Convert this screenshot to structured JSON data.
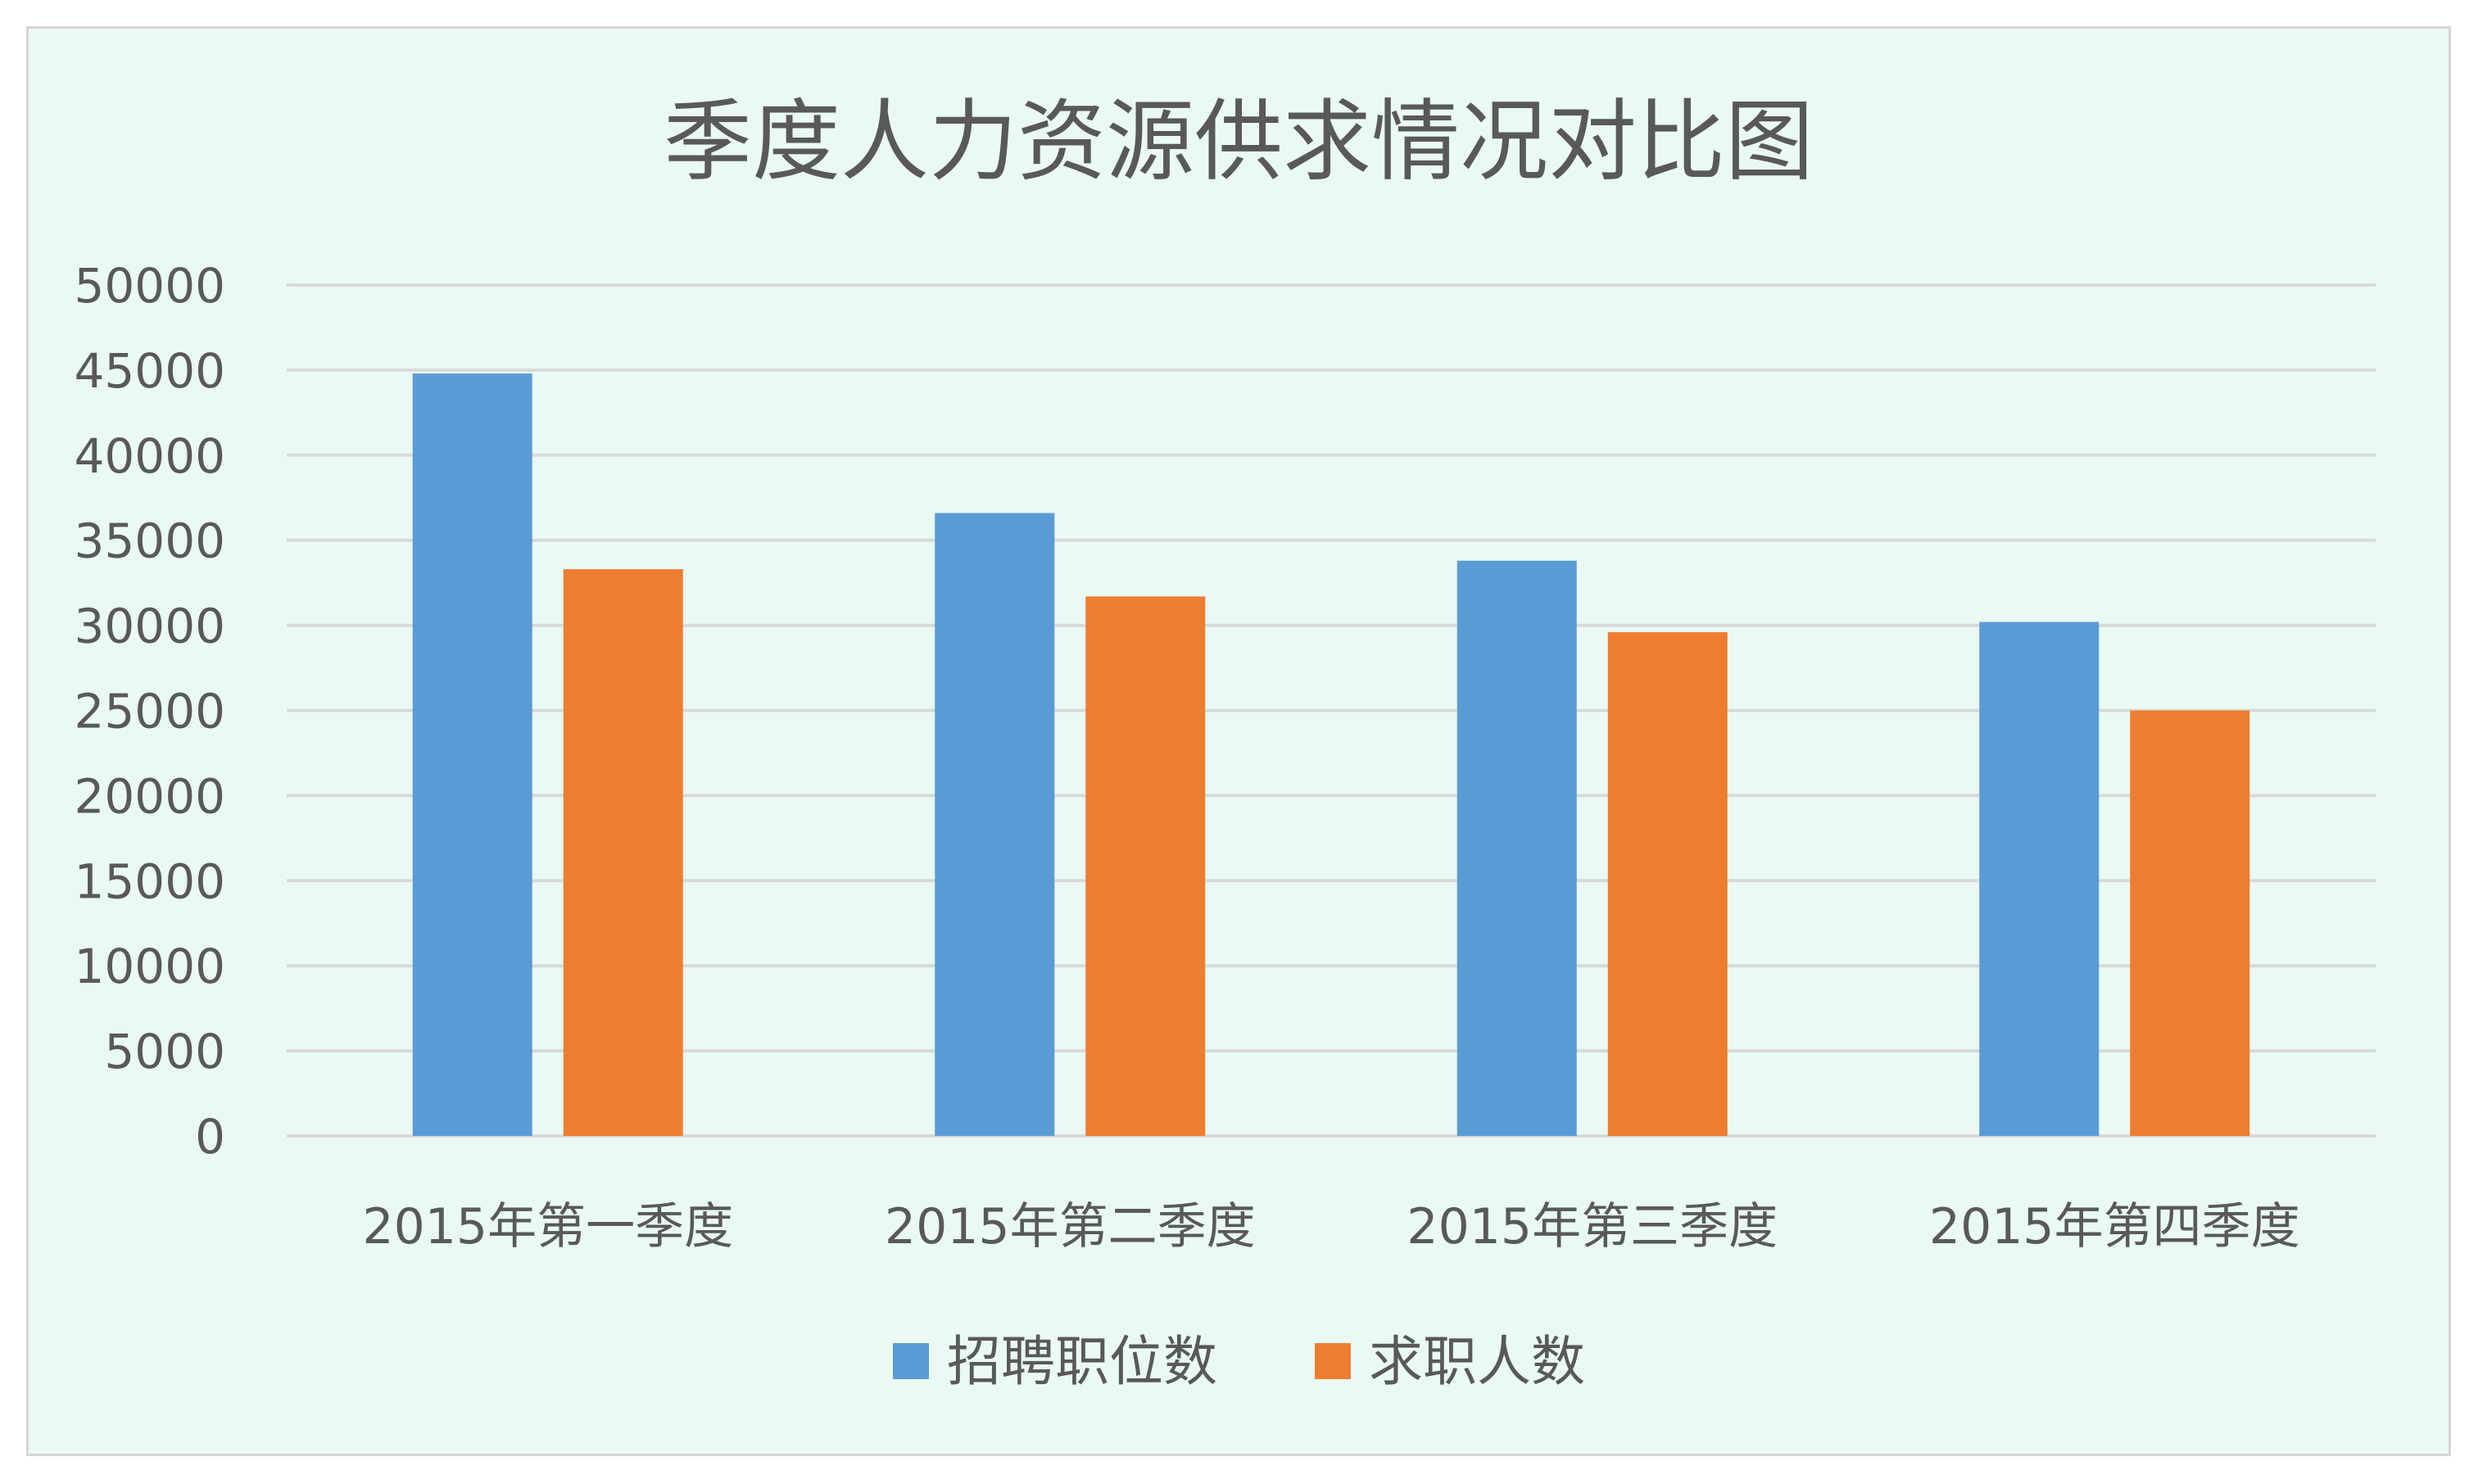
{
  "chart_data": {
    "type": "bar",
    "title": "季度人力资源供求情况对比图",
    "categories": [
      "2015年第一季度",
      "2015年第二季度",
      "2015年第三季度",
      "2015年第四季度"
    ],
    "series": [
      {
        "name": "招聘职位数",
        "values": [
          44800,
          36600,
          33800,
          30200
        ],
        "color": "#5b9bd5"
      },
      {
        "name": "求职人数",
        "values": [
          33300,
          31700,
          29600,
          25000
        ],
        "color": "#ed7d31"
      }
    ],
    "ylim": [
      0,
      50000
    ],
    "yticks": [
      0,
      5000,
      10000,
      15000,
      20000,
      25000,
      30000,
      35000,
      40000,
      45000,
      50000
    ],
    "grid": true,
    "legend_position": "bottom",
    "gridline_color": "#d9d9d9"
  }
}
